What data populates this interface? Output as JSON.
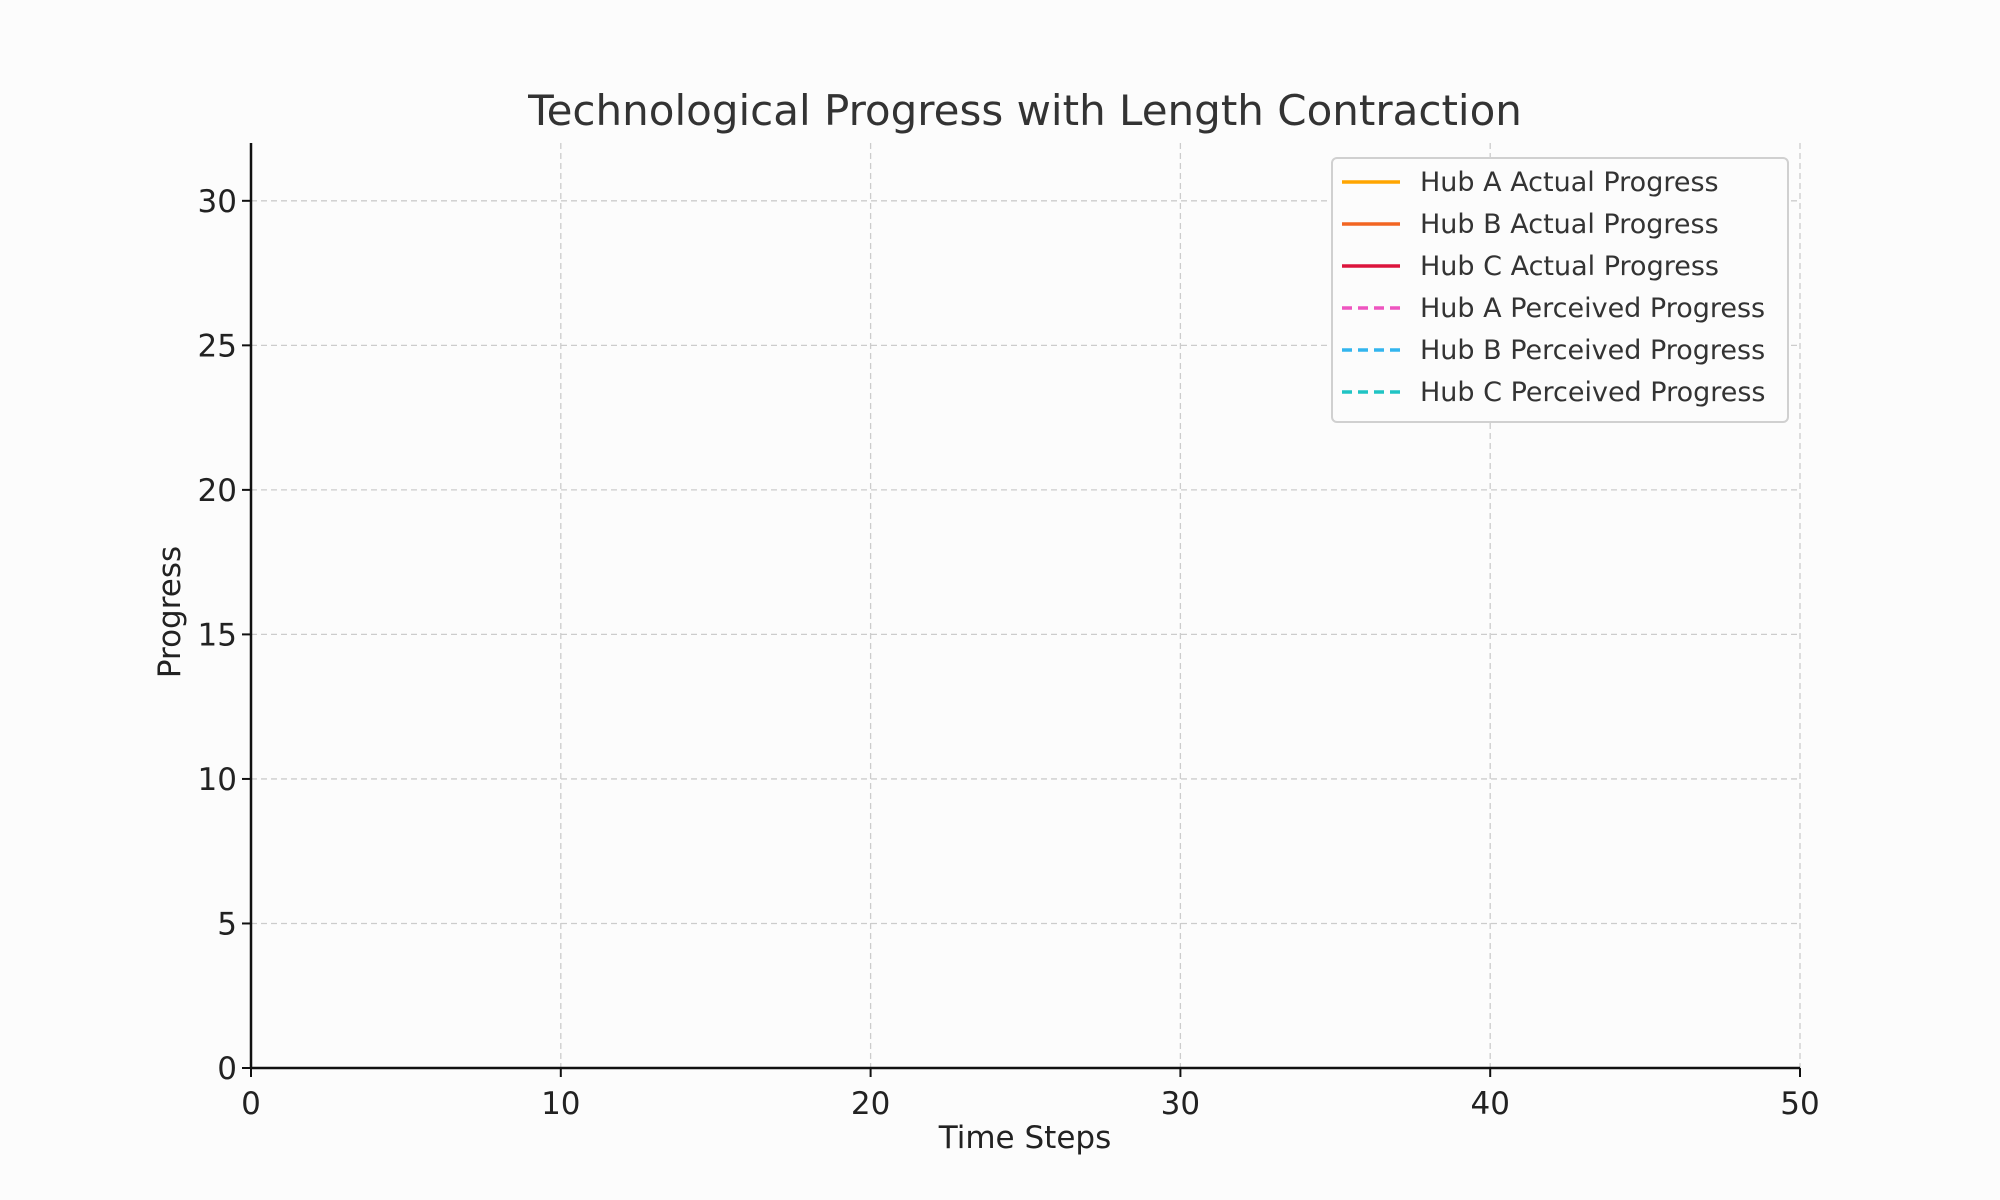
{
  "chart_data": {
    "type": "line",
    "title": "Technological Progress with Length Contraction",
    "xlabel": "Time Steps",
    "ylabel": "Progress",
    "xlim": [
      0,
      50
    ],
    "ylim": [
      0,
      32
    ],
    "xticks": [
      0,
      10,
      20,
      30,
      40,
      50
    ],
    "yticks": [
      0,
      5,
      10,
      15,
      20,
      25,
      30
    ],
    "grid": true,
    "legend_position": "top-right",
    "series": [
      {
        "name": "Hub A Actual Progress",
        "color": "#ffa500",
        "style": "solid",
        "x": [],
        "y": []
      },
      {
        "name": "Hub B Actual Progress",
        "color": "#f26522",
        "style": "solid",
        "x": [],
        "y": []
      },
      {
        "name": "Hub C Actual Progress",
        "color": "#dc143c",
        "style": "solid",
        "x": [],
        "y": []
      },
      {
        "name": "Hub A Perceived Progress",
        "color": "#ee55c0",
        "style": "dashed",
        "x": [],
        "y": []
      },
      {
        "name": "Hub B Perceived Progress",
        "color": "#33b5ee",
        "style": "dashed",
        "x": [],
        "y": []
      },
      {
        "name": "Hub C Perceived Progress",
        "color": "#20c4c4",
        "style": "dashed",
        "x": [],
        "y": []
      }
    ]
  }
}
